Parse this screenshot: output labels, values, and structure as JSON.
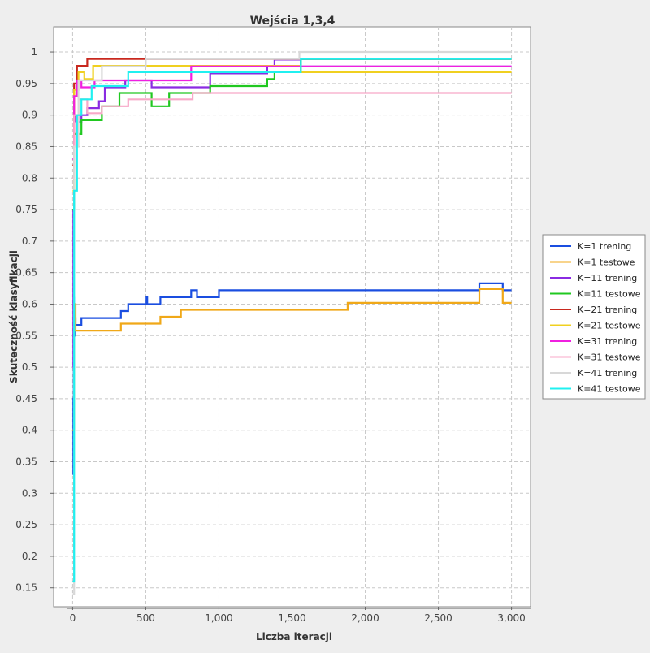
{
  "chart_data": {
    "type": "line",
    "title": "Wejścia 1,3,4",
    "xlabel": "Liczba iteracji",
    "ylabel": "Skuteczność klasyfikacji",
    "xlim": [
      -130,
      3130
    ],
    "ylim": [
      0.12,
      1.04
    ],
    "xticks": [
      0,
      500,
      1000,
      1500,
      2000,
      2500,
      3000
    ],
    "xtick_labels": [
      "0",
      "500",
      "1,000",
      "1,500",
      "2,000",
      "2,500",
      "3,000"
    ],
    "yticks": [
      0.15,
      0.2,
      0.25,
      0.3,
      0.35,
      0.4,
      0.45,
      0.5,
      0.55,
      0.6,
      0.65,
      0.7,
      0.75,
      0.8,
      0.85,
      0.9,
      0.95,
      1
    ],
    "ytick_labels": [
      "0.15",
      "0.2",
      "0.25",
      "0.3",
      "0.35",
      "0.4",
      "0.45",
      "0.5",
      "0.55",
      "0.6",
      "0.65",
      "0.7",
      "0.75",
      "0.8",
      "0.85",
      "0.9",
      "0.95",
      "1"
    ],
    "grid": true,
    "legend_position": "right",
    "series": [
      {
        "name": "K=1 trening",
        "color": "#1a4ee0",
        "x": [
          0,
          5,
          8,
          10,
          15,
          20,
          30,
          60,
          330,
          380,
          500,
          505,
          510,
          600,
          810,
          850,
          950,
          1000,
          2780,
          2940,
          3000
        ],
        "y": [
          0.33,
          0.45,
          0.61,
          0.55,
          0.578,
          0.567,
          0.567,
          0.578,
          0.589,
          0.6,
          0.6,
          0.611,
          0.6,
          0.611,
          0.622,
          0.611,
          0.611,
          0.622,
          0.633,
          0.622,
          0.622
        ]
      },
      {
        "name": "K=1 testowe",
        "color": "#f0a818",
        "x": [
          0,
          10,
          20,
          330,
          600,
          740,
          1880,
          2780,
          2940,
          3000
        ],
        "y": [
          0.4,
          0.6,
          0.558,
          0.569,
          0.58,
          0.591,
          0.602,
          0.624,
          0.602,
          0.602
        ]
      },
      {
        "name": "K=11 trening",
        "color": "#8a2be2",
        "x": [
          0,
          5,
          10,
          20,
          40,
          60,
          100,
          180,
          220,
          360,
          540,
          940,
          1330,
          1380,
          1560,
          3000
        ],
        "y": [
          0.5,
          0.75,
          0.89,
          0.9,
          0.889,
          0.9,
          0.911,
          0.922,
          0.944,
          0.955,
          0.944,
          0.966,
          0.977,
          0.988,
          0.977,
          0.977
        ]
      },
      {
        "name": "K=11 testowe",
        "color": "#20c820",
        "x": [
          0,
          10,
          60,
          200,
          320,
          540,
          660,
          940,
          1330,
          1380,
          1560,
          3000
        ],
        "y": [
          0.75,
          0.87,
          0.892,
          0.914,
          0.935,
          0.914,
          0.935,
          0.946,
          0.957,
          0.968,
          0.989,
          0.989
        ]
      },
      {
        "name": "K=21 trening",
        "color": "#c8281e",
        "x": [
          0,
          10,
          30,
          100,
          500,
          3000
        ],
        "y": [
          0.82,
          0.95,
          0.978,
          0.989,
          0.989,
          0.989
        ]
      },
      {
        "name": "K=21 testowe",
        "color": "#f0d020",
        "x": [
          0,
          10,
          40,
          80,
          140,
          500,
          800,
          1560,
          3000
        ],
        "y": [
          0.78,
          0.94,
          0.968,
          0.957,
          0.978,
          0.978,
          0.978,
          0.968,
          0.968
        ]
      },
      {
        "name": "K=31 trening",
        "color": "#f020e0",
        "x": [
          0,
          10,
          30,
          60,
          150,
          810,
          3000
        ],
        "y": [
          0.83,
          0.93,
          0.955,
          0.944,
          0.955,
          0.977,
          0.977
        ]
      },
      {
        "name": "K=31 testowe",
        "color": "#f8a8c8",
        "x": [
          0,
          10,
          40,
          100,
          200,
          380,
          820,
          3000
        ],
        "y": [
          0.8,
          0.9,
          0.925,
          0.903,
          0.914,
          0.925,
          0.935,
          0.935
        ]
      },
      {
        "name": "K=41 trening",
        "color": "#d8d8d8",
        "x": [
          0,
          10,
          40,
          200,
          500,
          1550,
          3000
        ],
        "y": [
          0.14,
          0.85,
          0.955,
          0.977,
          0.989,
          1.0,
          1.0
        ]
      },
      {
        "name": "K=41 testowe",
        "color": "#20f0f0",
        "x": [
          0,
          10,
          30,
          60,
          130,
          250,
          380,
          1560,
          3000
        ],
        "y": [
          0.16,
          0.78,
          0.9,
          0.925,
          0.946,
          0.946,
          0.968,
          0.989,
          0.989
        ]
      }
    ]
  }
}
